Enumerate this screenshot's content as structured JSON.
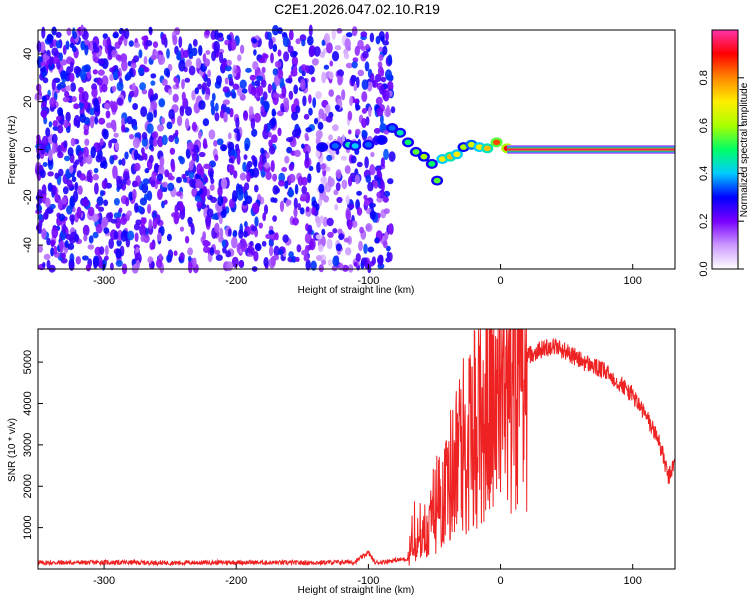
{
  "title": "C2E1.2026.047.02.10.R19",
  "chart_data": [
    {
      "type": "heatmap",
      "xlabel": "Height of straight line (km)",
      "ylabel": "Frequency (Hz)",
      "xlim": [
        -350,
        132
      ],
      "ylim": [
        -50,
        50
      ],
      "xticks": [
        -300,
        -200,
        -100,
        0,
        100
      ],
      "yticks": [
        -40,
        -20,
        0,
        20,
        40
      ],
      "colorbar": {
        "label": "Normalized spectral amplitude",
        "range": [
          0,
          1
        ],
        "ticks": [
          0.0,
          0.2,
          0.4,
          0.6,
          0.8
        ],
        "colors": [
          "#ffffff",
          "#cc99ff",
          "#7a00ff",
          "#0000ff",
          "#00ccff",
          "#00ff66",
          "#aaff00",
          "#ffee00",
          "#ff8800",
          "#ff0000",
          "#ff33aa"
        ]
      },
      "trace": [
        {
          "x": -135,
          "y": 1,
          "a": 0.3
        },
        {
          "x": -125,
          "y": 1.5,
          "a": 0.35
        },
        {
          "x": -115,
          "y": 2,
          "a": 0.45
        },
        {
          "x": -110,
          "y": 1.5,
          "a": 0.4
        },
        {
          "x": -100,
          "y": 2,
          "a": 0.35
        },
        {
          "x": -90,
          "y": 4,
          "a": 0.3
        },
        {
          "x": -82,
          "y": 9,
          "a": 0.35
        },
        {
          "x": -76,
          "y": 7,
          "a": 0.45
        },
        {
          "x": -70,
          "y": 3,
          "a": 0.5
        },
        {
          "x": -64,
          "y": -1,
          "a": 0.55
        },
        {
          "x": -58,
          "y": -3,
          "a": 0.6
        },
        {
          "x": -52,
          "y": -6,
          "a": 0.5
        },
        {
          "x": -48,
          "y": -13,
          "a": 0.55
        },
        {
          "x": -44,
          "y": -4,
          "a": 0.7
        },
        {
          "x": -38,
          "y": -3,
          "a": 0.75
        },
        {
          "x": -33,
          "y": -2,
          "a": 0.7
        },
        {
          "x": -28,
          "y": 1,
          "a": 0.6
        },
        {
          "x": -22,
          "y": 2,
          "a": 0.65
        },
        {
          "x": -16,
          "y": 1,
          "a": 0.7
        },
        {
          "x": -10,
          "y": 0.5,
          "a": 0.75
        },
        {
          "x": -3,
          "y": 3,
          "a": 0.85
        },
        {
          "x": 5,
          "y": 0.5,
          "a": 0.9
        }
      ],
      "band": {
        "x_start": 5,
        "x_end": 132,
        "y": 0,
        "amplitude": 0.95
      }
    },
    {
      "type": "line",
      "xlabel": "Height of straight line (km)",
      "ylabel": "SNR (10 * v/v)",
      "xlim": [
        -350,
        132
      ],
      "ylim": [
        0,
        5800
      ],
      "xticks": [
        -300,
        -200,
        -100,
        0,
        100
      ],
      "yticks": [
        1000,
        2000,
        3000,
        4000,
        5000
      ],
      "color": "#ee2222",
      "x": [
        -350,
        -300,
        -250,
        -200,
        -150,
        -110,
        -100,
        -95,
        -70,
        -60,
        -50,
        -40,
        -30,
        -20,
        -10,
        0,
        10,
        20,
        30,
        40,
        50,
        60,
        70,
        80,
        90,
        100,
        110,
        120,
        127,
        132
      ],
      "y": [
        150,
        160,
        150,
        160,
        150,
        170,
        400,
        150,
        250,
        600,
        1300,
        2100,
        2900,
        3500,
        4000,
        4400,
        4800,
        5150,
        5300,
        5400,
        5250,
        5050,
        4900,
        4750,
        4500,
        4200,
        3700,
        3100,
        2200,
        2600
      ]
    }
  ]
}
